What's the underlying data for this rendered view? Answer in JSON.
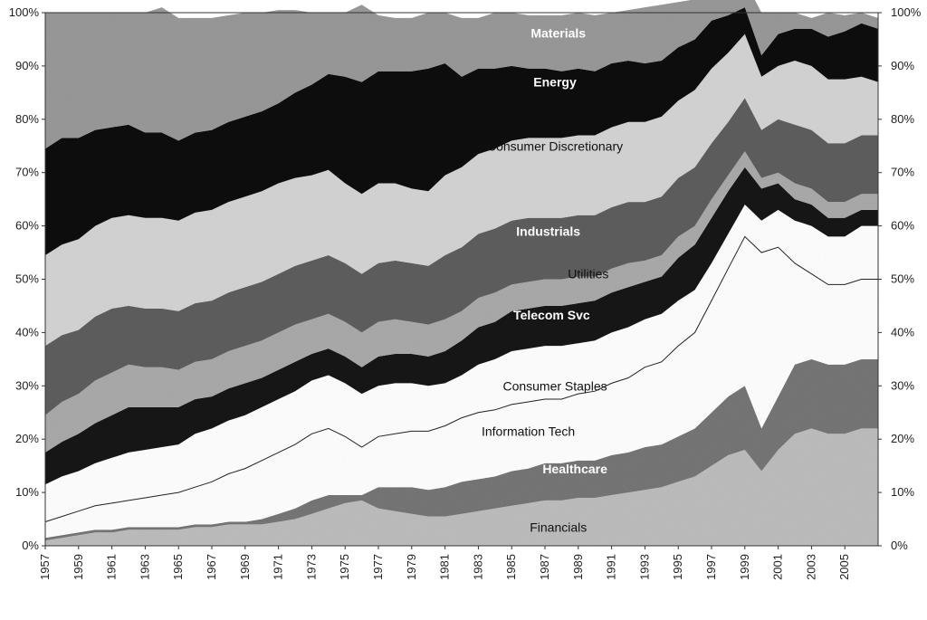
{
  "chart_data": {
    "type": "area",
    "stacked": true,
    "normalized": true,
    "x": [
      1957,
      1958,
      1959,
      1960,
      1961,
      1962,
      1963,
      1964,
      1965,
      1966,
      1967,
      1968,
      1969,
      1970,
      1971,
      1972,
      1973,
      1974,
      1975,
      1976,
      1977,
      1978,
      1979,
      1980,
      1981,
      1982,
      1983,
      1984,
      1985,
      1986,
      1987,
      1988,
      1989,
      1990,
      1991,
      1992,
      1993,
      1994,
      1995,
      1996,
      1997,
      1998,
      1999,
      2000,
      2001,
      2002,
      2003,
      2004,
      2005,
      2006,
      2007
    ],
    "x_tick_labels": [
      "1957",
      "1959",
      "1961",
      "1963",
      "1965",
      "1967",
      "1969",
      "1971",
      "1973",
      "1975",
      "1977",
      "1979",
      "1981",
      "1983",
      "1985",
      "1987",
      "1989",
      "1991",
      "1993",
      "1995",
      "1997",
      "1999",
      "2001",
      "2003",
      "2005"
    ],
    "y_tick_labels_left": [
      "0%",
      "10%",
      "20%",
      "30%",
      "40%",
      "50%",
      "60%",
      "70%",
      "80%",
      "90%",
      "100%"
    ],
    "y_tick_labels_right": [
      "0%",
      "10%",
      "20%",
      "30%",
      "40%",
      "50%",
      "60%",
      "70%",
      "80%",
      "90%",
      "100%"
    ],
    "ylim": [
      0,
      100
    ],
    "grid": false,
    "series_order_bottom_to_top": [
      "Financials",
      "Healthcare",
      "Information Tech",
      "Consumer Staples",
      "Telecom Svc",
      "Utilities",
      "Industrials",
      "Consumer Discretionary",
      "Energy",
      "Materials"
    ],
    "series": [
      {
        "name": "Financials",
        "color": "#bdbdbd",
        "values": [
          1,
          1.5,
          2,
          2.5,
          2.5,
          3,
          3,
          3,
          3,
          3.5,
          3.5,
          4,
          4,
          4,
          4.5,
          5,
          6,
          7,
          8,
          8.5,
          7,
          6.5,
          6,
          5.5,
          5.5,
          6,
          6.5,
          7,
          7.5,
          8,
          8.5,
          8.5,
          9,
          9,
          9.5,
          10,
          10.5,
          11,
          12,
          13,
          15,
          17,
          18,
          14,
          18,
          21,
          22,
          21,
          21,
          22,
          22
        ]
      },
      {
        "name": "Healthcare",
        "color": "#767676",
        "values": [
          0.5,
          0.5,
          0.5,
          0.5,
          0.5,
          0.5,
          0.5,
          0.5,
          0.5,
          0.5,
          0.5,
          0.5,
          0.5,
          1,
          1.5,
          2,
          2.5,
          2.5,
          1.5,
          1,
          4,
          4.5,
          5,
          5,
          5.5,
          6,
          6,
          6,
          6.5,
          6.5,
          7,
          7,
          7,
          7,
          7.5,
          7.5,
          8,
          8,
          8.5,
          9,
          10,
          11,
          12,
          8,
          10,
          13,
          13,
          13,
          13,
          13,
          13
        ]
      },
      {
        "name": "Information Tech",
        "color": "#ffffff",
        "values": [
          3,
          3.5,
          4,
          4.5,
          5,
          5,
          5.5,
          6,
          6.5,
          7,
          8,
          9,
          10,
          11,
          11.5,
          12,
          12.5,
          12.5,
          11,
          9,
          9.5,
          10,
          10.5,
          11,
          11.5,
          12,
          12.5,
          12.5,
          12.5,
          12.5,
          12,
          12,
          12.5,
          13,
          13.5,
          14,
          15,
          15.5,
          17,
          18,
          21,
          24,
          28,
          33,
          28,
          19,
          16,
          15,
          15,
          15,
          15
        ]
      },
      {
        "name": "Consumer Staples",
        "color": "#ffffff",
        "values": [
          7,
          7.5,
          7.5,
          8,
          8.5,
          9,
          9,
          9,
          9,
          10,
          10,
          10,
          10,
          10,
          10,
          10,
          10,
          10,
          10,
          10,
          9.5,
          9.5,
          9,
          8.5,
          8,
          8,
          9,
          9.5,
          10,
          10,
          10,
          10,
          9.5,
          9.5,
          9.5,
          9.5,
          9,
          9,
          8.5,
          8,
          7,
          6.5,
          6,
          6,
          7,
          8,
          9,
          9,
          9,
          10,
          10
        ]
      },
      {
        "name": "Telecom Svc",
        "color": "#141414",
        "values": [
          6,
          6.5,
          7,
          7.5,
          8,
          8.5,
          8,
          7.5,
          7,
          6.5,
          6,
          6,
          6,
          5.5,
          5.5,
          5.5,
          5,
          5,
          5,
          5,
          5.5,
          5.5,
          5.5,
          5.5,
          6,
          6.5,
          7,
          7,
          7.5,
          7.5,
          7.5,
          7.5,
          7.5,
          7.5,
          7.5,
          7.5,
          7,
          7,
          8,
          8.5,
          8.5,
          8,
          7,
          6,
          5,
          4,
          4,
          3.5,
          3.5,
          3,
          3
        ]
      },
      {
        "name": "Utilities",
        "color": "#aaaaaa",
        "values": [
          7,
          7.5,
          7.5,
          8,
          8,
          8,
          7.5,
          7.5,
          7,
          7,
          7,
          7,
          7,
          7,
          7,
          7,
          6.5,
          6.5,
          6.5,
          6.5,
          6.5,
          6.5,
          6,
          6,
          6,
          5.5,
          5.5,
          5.5,
          5,
          5,
          5,
          5,
          5,
          4.5,
          4.5,
          4.5,
          4,
          4,
          4,
          3.5,
          3.5,
          3,
          3,
          2,
          2,
          3,
          3,
          3,
          3,
          3,
          3
        ]
      },
      {
        "name": "Industrials",
        "color": "#5e5e5e",
        "values": [
          13,
          12.5,
          12,
          12,
          12,
          11,
          11,
          11,
          11,
          11,
          11,
          11,
          11,
          11,
          11,
          11,
          11,
          11,
          11,
          11,
          11,
          11,
          11,
          11,
          12,
          12,
          12,
          12,
          12,
          12,
          11.5,
          11.5,
          11.5,
          11.5,
          11.5,
          11.5,
          11,
          11,
          11,
          11,
          10.5,
          10,
          10,
          9,
          10,
          11,
          11,
          11,
          11,
          11,
          11
        ]
      },
      {
        "name": "Consumer Discretionary",
        "color": "#d4d4d4",
        "values": [
          17,
          17,
          17,
          17,
          17,
          17,
          17,
          17,
          17,
          17,
          17,
          17,
          17,
          17,
          17,
          16.5,
          16,
          16,
          15,
          15,
          15,
          14.5,
          14,
          14,
          15,
          15,
          15,
          15,
          15,
          15,
          15,
          15,
          15,
          15,
          15,
          15,
          15,
          15,
          14.5,
          14.5,
          14,
          13,
          12,
          10,
          10,
          12,
          12,
          12,
          12,
          11,
          10
        ]
      },
      {
        "name": "Energy",
        "color": "#0a0a0a",
        "values": [
          20,
          20,
          19,
          18,
          17,
          17,
          16,
          16,
          15,
          15,
          15,
          15,
          15,
          15,
          15,
          16,
          17,
          18,
          20,
          21,
          21,
          21,
          22,
          23,
          21,
          17,
          16,
          15,
          14,
          13,
          13,
          12.5,
          12.5,
          12,
          12,
          11.5,
          11,
          10.5,
          10,
          9.5,
          9,
          7,
          5,
          4,
          6,
          6,
          7,
          8,
          9,
          10,
          10
        ]
      },
      {
        "name": "Materials",
        "color": "#999999",
        "values": [
          25.5,
          23.5,
          23.5,
          22,
          21.5,
          21,
          22.5,
          23.5,
          23,
          21.5,
          21,
          20,
          19.5,
          18.5,
          17.5,
          15.5,
          13.5,
          11.5,
          12,
          14.5,
          10.5,
          10,
          10,
          10.5,
          9.5,
          11,
          9.5,
          10.5,
          10,
          10,
          10,
          10.5,
          10.5,
          10.5,
          9.5,
          9.5,
          10.5,
          10.5,
          8.5,
          7.5,
          5.5,
          5.5,
          5,
          8,
          4,
          3,
          2,
          4.5,
          3,
          2,
          2
        ]
      }
    ],
    "annotations": [
      {
        "series": "Materials",
        "text": "Materials",
        "x": 1987.8,
        "y": 96.2,
        "style": "bold"
      },
      {
        "series": "Energy",
        "text": "Energy",
        "x": 1987.6,
        "y": 87.0,
        "style": "bold"
      },
      {
        "series": "Consumer Discretionary",
        "text": "Consumer Discretionary",
        "x": 1987.6,
        "y": 75.0,
        "style": "normal"
      },
      {
        "series": "Industrials",
        "text": "Industrials",
        "x": 1987.2,
        "y": 59.0,
        "style": "bold"
      },
      {
        "series": "Utilities",
        "text": "Utilities",
        "x": 1989.6,
        "y": 51.0,
        "style": "normal"
      },
      {
        "series": "Telecom Svc",
        "text": "Telecom Svc",
        "x": 1987.4,
        "y": 43.3,
        "style": "bold"
      },
      {
        "series": "Consumer Staples",
        "text": "Consumer Staples",
        "x": 1987.6,
        "y": 30.0,
        "style": "normal"
      },
      {
        "series": "Information Tech",
        "text": "Information Tech",
        "x": 1986.0,
        "y": 21.5,
        "style": "normal"
      },
      {
        "series": "Healthcare",
        "text": "Healthcare",
        "x": 1988.8,
        "y": 14.4,
        "style": "bold"
      },
      {
        "series": "Financials",
        "text": "Financials",
        "x": 1987.8,
        "y": 3.5,
        "style": "normal"
      }
    ]
  }
}
